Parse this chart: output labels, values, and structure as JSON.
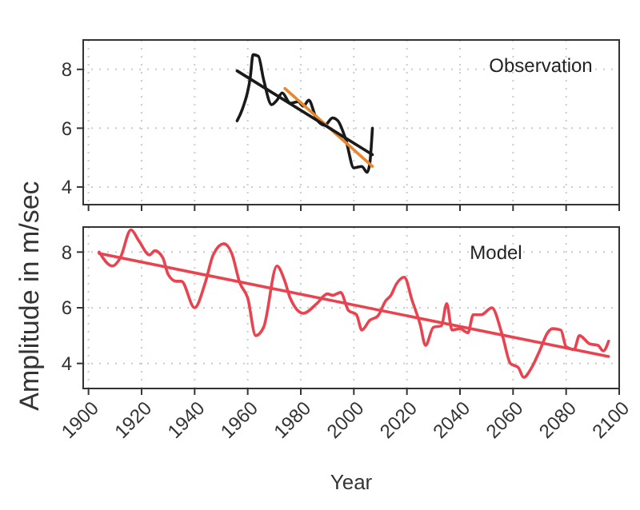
{
  "chart_data": [
    {
      "type": "line",
      "annotations": [
        "Observation"
      ],
      "xlim": [
        1898,
        2100
      ],
      "xticks": [
        1900,
        1920,
        1940,
        1960,
        1980,
        2000,
        2020,
        2040,
        2060,
        2080,
        2100
      ],
      "ylim": [
        3.4,
        9
      ],
      "yticks": [
        4,
        6,
        8
      ],
      "grid": true,
      "tick_labels": "y",
      "series": [
        {
          "color": "#1a1a1a",
          "x": [
            1956,
            1958,
            1961,
            1962,
            1964,
            1966,
            1969,
            1971,
            1973,
            1976,
            1979,
            1981,
            1983,
            1986,
            1989,
            1992,
            1994,
            1997,
            2000,
            2003,
            2005,
            2006,
            2007
          ],
          "values": [
            6.25,
            6.65,
            7.75,
            8.5,
            8.45,
            7.65,
            6.8,
            6.95,
            7.2,
            6.85,
            6.9,
            6.75,
            6.95,
            6.3,
            6.1,
            6.35,
            6.25,
            5.6,
            4.65,
            4.7,
            4.5,
            4.8,
            6.0
          ]
        },
        {
          "color": "#e8872f",
          "x": [
            1974,
            2007
          ],
          "values": [
            7.35,
            4.7
          ]
        },
        {
          "color": "#1a1a1a",
          "x": [
            1956,
            2007
          ],
          "values": [
            7.95,
            5.1
          ]
        }
      ]
    },
    {
      "type": "line",
      "annotations": [
        "Model"
      ],
      "xlabel": "Year",
      "ylabel": "Amplitude in m/sec",
      "xlim": [
        1898,
        2100
      ],
      "xticks": [
        1900,
        1920,
        1940,
        1960,
        1980,
        2000,
        2020,
        2040,
        2060,
        2080,
        2100
      ],
      "ylim": [
        3.1,
        8.9
      ],
      "yticks": [
        4,
        6,
        8
      ],
      "grid": true,
      "series": [
        {
          "color": "#e8434f",
          "x": [
            1904,
            1909,
            1912,
            1916,
            1919,
            1923,
            1925,
            1928,
            1930,
            1933,
            1935,
            1940,
            1944,
            1947,
            1951,
            1954,
            1957,
            1960,
            1963,
            1966,
            1971,
            1974,
            1976,
            1981,
            1986,
            1990,
            1992,
            1995,
            1998,
            2001,
            2003,
            2006,
            2009,
            2012,
            2014,
            2016,
            2019,
            2022,
            2025,
            2027,
            2030,
            2033,
            2035,
            2037,
            2040,
            2043,
            2045,
            2048,
            2052,
            2056,
            2059,
            2062,
            2064,
            2067,
            2070,
            2073,
            2075,
            2078,
            2080,
            2083,
            2085,
            2089,
            2092,
            2094,
            2096
          ],
          "values": [
            8.0,
            7.5,
            7.8,
            8.8,
            8.4,
            7.9,
            8.05,
            7.8,
            7.2,
            6.95,
            6.95,
            6.0,
            6.9,
            7.9,
            8.3,
            7.95,
            6.9,
            6.35,
            5.0,
            5.3,
            7.5,
            6.95,
            6.35,
            5.8,
            6.15,
            6.5,
            6.45,
            6.55,
            5.9,
            5.75,
            5.2,
            5.55,
            5.7,
            6.25,
            6.45,
            6.85,
            7.1,
            6.25,
            5.4,
            4.65,
            5.3,
            5.35,
            6.15,
            5.2,
            5.25,
            5.1,
            5.75,
            5.75,
            6.0,
            5.0,
            4.0,
            3.85,
            3.5,
            3.85,
            4.45,
            5.1,
            5.25,
            5.2,
            4.6,
            4.5,
            5.0,
            4.7,
            4.65,
            4.45,
            4.8
          ]
        },
        {
          "color": "#e8434f",
          "x": [
            1904,
            2096
          ],
          "values": [
            7.95,
            4.25
          ]
        }
      ]
    }
  ]
}
